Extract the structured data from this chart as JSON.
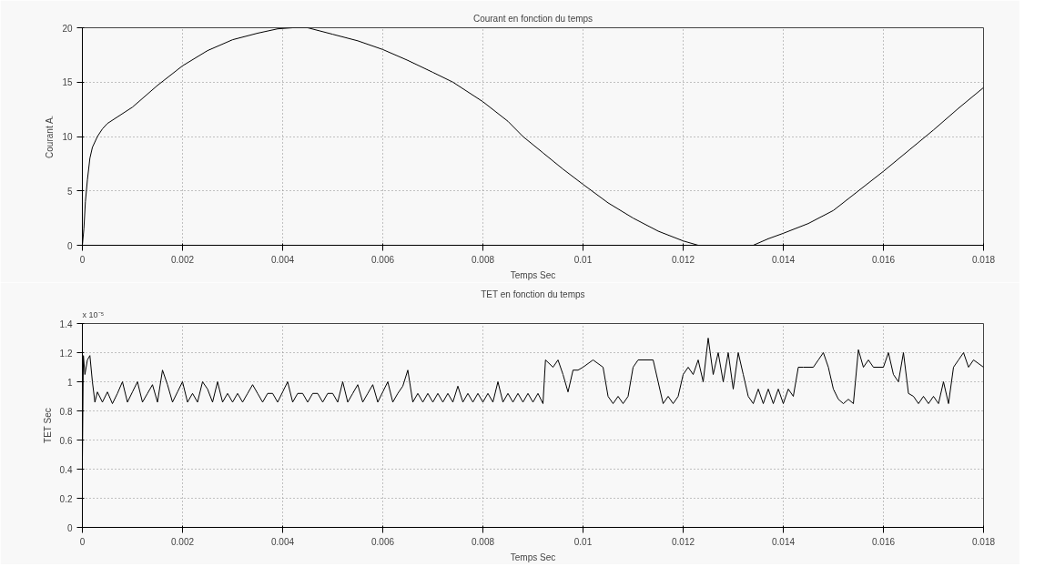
{
  "chart_data": [
    {
      "type": "line",
      "title": "Courant en fonction du temps",
      "xlabel": "Temps Sec",
      "ylabel": "Courant A.",
      "color": "#000000",
      "line_style": "solid",
      "grid": true,
      "x": [
        0,
        3e-05,
        6e-05,
        0.0001,
        0.00015,
        0.0002,
        0.0003,
        0.0004,
        0.0005,
        0.0007,
        0.001,
        0.0015,
        0.002,
        0.0025,
        0.003,
        0.0035,
        0.0039,
        0.0042,
        0.0045,
        0.005,
        0.0055,
        0.006,
        0.0065,
        0.007,
        0.0074,
        0.008,
        0.0085,
        0.0088,
        0.0092,
        0.0096,
        0.01,
        0.0105,
        0.011,
        0.0115,
        0.012,
        0.0123,
        0.0128,
        0.0134,
        0.0137,
        0.014,
        0.0145,
        0.015,
        0.0155,
        0.016,
        0.0165,
        0.017,
        0.0175,
        0.018
      ],
      "values": [
        0,
        1.5,
        4,
        6,
        8,
        9,
        10,
        10.7,
        11.2,
        11.8,
        12.7,
        14.7,
        16.5,
        17.9,
        18.9,
        19.5,
        19.9,
        20,
        20,
        19.4,
        18.8,
        18,
        17,
        15.9,
        15,
        13.2,
        11.4,
        10,
        8.5,
        7,
        5.6,
        3.9,
        2.5,
        1.3,
        0.4,
        0,
        0,
        0,
        0.6,
        1.1,
        2,
        3.2,
        5,
        6.8,
        8.7,
        10.6,
        12.6,
        14.5
      ],
      "xlim": [
        0,
        0.018
      ],
      "ylim": [
        0,
        20
      ],
      "xticks": [
        0,
        0.002,
        0.004,
        0.006,
        0.008,
        0.01,
        0.012,
        0.014,
        0.016,
        0.018
      ],
      "yticks": [
        0,
        5,
        10,
        15,
        20
      ]
    },
    {
      "type": "line",
      "title": "TET en fonction du temps",
      "xlabel": "Temps Sec",
      "ylabel": "TET Sec",
      "color": "#000000",
      "line_style": "solid",
      "grid": true,
      "annotations": [
        "x 10⁻⁵"
      ],
      "x": [
        0,
        2e-05,
        5e-05,
        0.0001,
        0.00015,
        0.0002,
        0.00025,
        0.0003,
        0.0004,
        0.0005,
        0.0006,
        0.0007,
        0.0008,
        0.0009,
        0.001,
        0.0011,
        0.0012,
        0.0013,
        0.0014,
        0.0015,
        0.0016,
        0.0017,
        0.0018,
        0.0019,
        0.002,
        0.0021,
        0.0022,
        0.0023,
        0.0024,
        0.0025,
        0.0026,
        0.0027,
        0.0028,
        0.0029,
        0.003,
        0.0031,
        0.0032,
        0.0033,
        0.0034,
        0.0035,
        0.0036,
        0.0037,
        0.0038,
        0.0039,
        0.004,
        0.0041,
        0.0042,
        0.0043,
        0.0044,
        0.0045,
        0.0046,
        0.0047,
        0.0048,
        0.0049,
        0.005,
        0.0051,
        0.0052,
        0.0053,
        0.0054,
        0.0055,
        0.0056,
        0.0057,
        0.0058,
        0.0059,
        0.006,
        0.0061,
        0.0062,
        0.0063,
        0.0064,
        0.0065,
        0.0066,
        0.0067,
        0.0068,
        0.0069,
        0.007,
        0.0071,
        0.0072,
        0.0073,
        0.0074,
        0.0075,
        0.0076,
        0.0077,
        0.0078,
        0.0079,
        0.008,
        0.0081,
        0.0082,
        0.0083,
        0.0084,
        0.0085,
        0.0086,
        0.0087,
        0.0088,
        0.0089,
        0.009,
        0.0091,
        0.0092,
        0.00925,
        0.0094,
        0.0095,
        0.0096,
        0.0097,
        0.0098,
        0.0099,
        0.01,
        0.0102,
        0.0104,
        0.0105,
        0.0106,
        0.0107,
        0.0108,
        0.0109,
        0.011,
        0.0111,
        0.0113,
        0.0114,
        0.0115,
        0.0116,
        0.0117,
        0.0118,
        0.0119,
        0.012,
        0.0121,
        0.0122,
        0.0123,
        0.0124,
        0.0125,
        0.0126,
        0.0127,
        0.0128,
        0.0129,
        0.013,
        0.0131,
        0.0132,
        0.0133,
        0.0134,
        0.0135,
        0.0136,
        0.0137,
        0.0138,
        0.0139,
        0.014,
        0.0141,
        0.0142,
        0.0143,
        0.0144,
        0.0146,
        0.0147,
        0.0148,
        0.0149,
        0.015,
        0.0151,
        0.0152,
        0.0153,
        0.0154,
        0.0155,
        0.0156,
        0.0157,
        0.0158,
        0.016,
        0.0161,
        0.0162,
        0.0163,
        0.0164,
        0.0165,
        0.0166,
        0.0167,
        0.0168,
        0.0169,
        0.017,
        0.0171,
        0.0172,
        0.0173,
        0.0174,
        0.0175,
        0.0176,
        0.0177,
        0.0178,
        0.018
      ],
      "values": [
        0.45,
        1.18,
        1.05,
        1.15,
        1.18,
        1.0,
        0.86,
        0.93,
        0.86,
        0.93,
        0.85,
        0.92,
        1.0,
        0.86,
        0.93,
        1.0,
        0.86,
        0.92,
        0.98,
        0.86,
        1.08,
        0.98,
        0.86,
        0.93,
        1.0,
        0.86,
        0.92,
        0.86,
        1.0,
        0.95,
        0.86,
        1.0,
        0.86,
        0.92,
        0.86,
        0.92,
        0.86,
        0.92,
        0.98,
        0.92,
        0.86,
        0.92,
        0.92,
        0.86,
        0.93,
        1.0,
        0.86,
        0.92,
        0.92,
        0.86,
        0.92,
        0.92,
        0.86,
        0.92,
        0.92,
        0.86,
        1.0,
        0.86,
        0.92,
        0.98,
        0.86,
        0.92,
        0.98,
        0.86,
        0.93,
        1.0,
        0.86,
        0.92,
        0.97,
        1.08,
        0.86,
        0.92,
        0.86,
        0.92,
        0.86,
        0.92,
        0.86,
        0.92,
        0.86,
        0.97,
        0.86,
        0.92,
        0.86,
        0.92,
        0.86,
        0.92,
        0.86,
        1.0,
        0.86,
        0.92,
        0.86,
        0.92,
        0.86,
        0.92,
        0.86,
        0.92,
        0.85,
        1.15,
        1.1,
        1.15,
        1.05,
        0.93,
        1.08,
        1.08,
        1.1,
        1.15,
        1.1,
        0.9,
        0.85,
        0.9,
        0.85,
        0.9,
        1.1,
        1.15,
        1.15,
        1.15,
        1.0,
        0.85,
        0.9,
        0.85,
        0.9,
        1.05,
        1.1,
        1.05,
        1.15,
        1.0,
        1.3,
        1.05,
        1.2,
        1.0,
        1.2,
        0.95,
        1.2,
        1.05,
        0.9,
        0.85,
        0.95,
        0.85,
        0.95,
        0.85,
        0.95,
        0.85,
        0.95,
        0.9,
        1.1,
        1.1,
        1.1,
        1.15,
        1.2,
        1.1,
        0.95,
        0.88,
        0.85,
        0.88,
        0.85,
        1.22,
        1.1,
        1.15,
        1.1,
        1.1,
        1.2,
        1.05,
        1.0,
        1.2,
        0.92,
        0.9,
        0.85,
        0.9,
        0.85,
        0.9,
        0.85,
        1.0,
        0.85,
        1.1,
        1.15,
        1.2,
        1.1,
        1.15,
        1.1
      ],
      "xlim": [
        0,
        0.018
      ],
      "ylim": [
        0,
        1.4
      ],
      "xticks": [
        0,
        0.002,
        0.004,
        0.006,
        0.008,
        0.01,
        0.012,
        0.014,
        0.016,
        0.018
      ],
      "yticks": [
        0,
        0.2,
        0.4,
        0.6,
        0.8,
        1,
        1.2,
        1.4
      ]
    }
  ]
}
